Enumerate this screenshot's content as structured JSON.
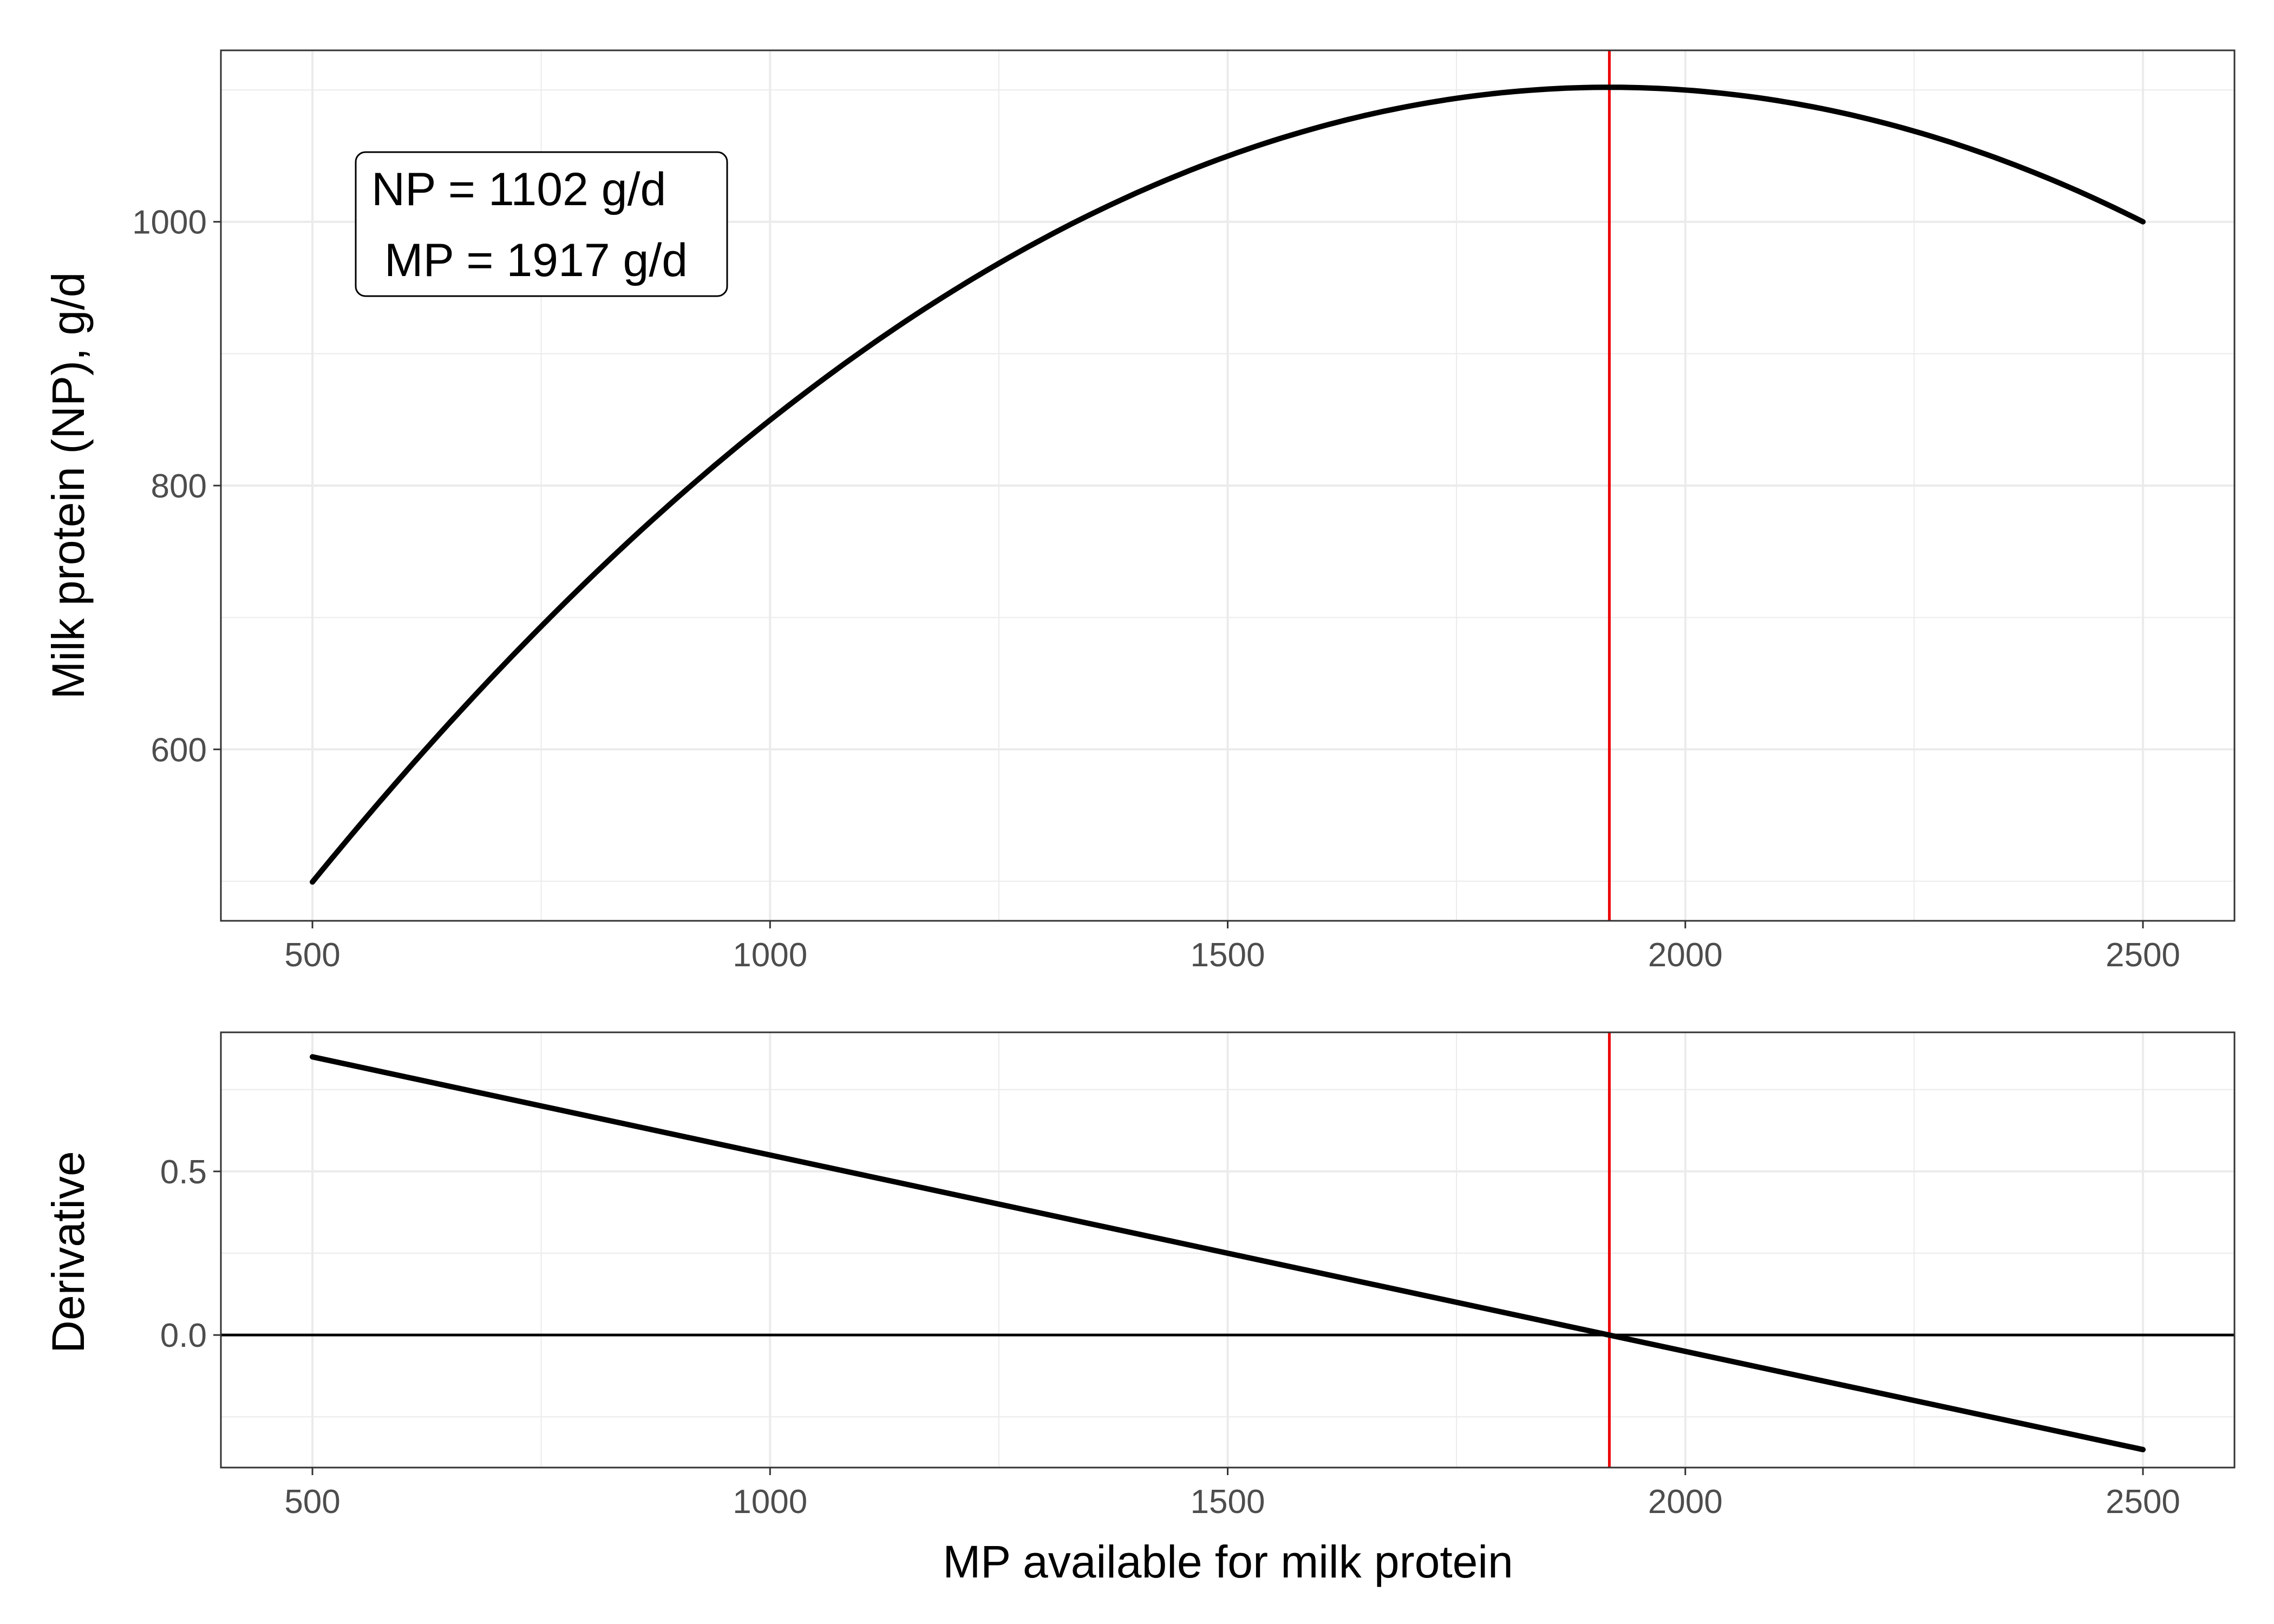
{
  "chart_data": [
    {
      "type": "line",
      "panel": "top",
      "title": "",
      "xlabel": "",
      "ylabel": "Milk protein (NP), g/d",
      "xlim": [
        400,
        2600
      ],
      "ylim": [
        470,
        1130
      ],
      "x_ticks": [
        500,
        1000,
        1500,
        2000,
        2500
      ],
      "x_tick_labels": [
        "500",
        "1000",
        "1500",
        "2000",
        "2500"
      ],
      "y_ticks": [
        600,
        800,
        1000
      ],
      "y_tick_labels": [
        "600",
        "800",
        "1000"
      ],
      "grid": true,
      "series": [
        {
          "color": "#000000",
          "x": [
            500,
            750,
            1000,
            1250,
            1500,
            1750,
            1917,
            2000,
            2250,
            2500
          ],
          "y": [
            500,
            695,
            850,
            964,
            1048,
            1092,
            1102,
            1099,
            1068,
            1000
          ]
        }
      ],
      "vline": {
        "x": 1917,
        "color": "#ee0000"
      },
      "annotation": {
        "lines": [
          "NP = 1102 g/d",
          " MP = 1917 g/d"
        ],
        "position": "top-left"
      }
    },
    {
      "type": "line",
      "panel": "bottom",
      "title": "",
      "xlabel": "MP available for milk protein",
      "ylabel": "Derivative",
      "xlim": [
        400,
        2600
      ],
      "ylim": [
        -0.405,
        0.925
      ],
      "x_ticks": [
        500,
        1000,
        1500,
        2000,
        2500
      ],
      "x_tick_labels": [
        "500",
        "1000",
        "1500",
        "2000",
        "2500"
      ],
      "y_ticks": [
        0.0,
        0.5
      ],
      "y_tick_labels": [
        "0.0",
        "0.5"
      ],
      "grid": true,
      "series": [
        {
          "color": "#000000",
          "x": [
            500,
            2500
          ],
          "y": [
            0.85,
            -0.35
          ]
        }
      ],
      "hline": {
        "y": 0,
        "color": "#000000"
      },
      "vline": {
        "x": 1917,
        "color": "#ee0000"
      }
    }
  ]
}
